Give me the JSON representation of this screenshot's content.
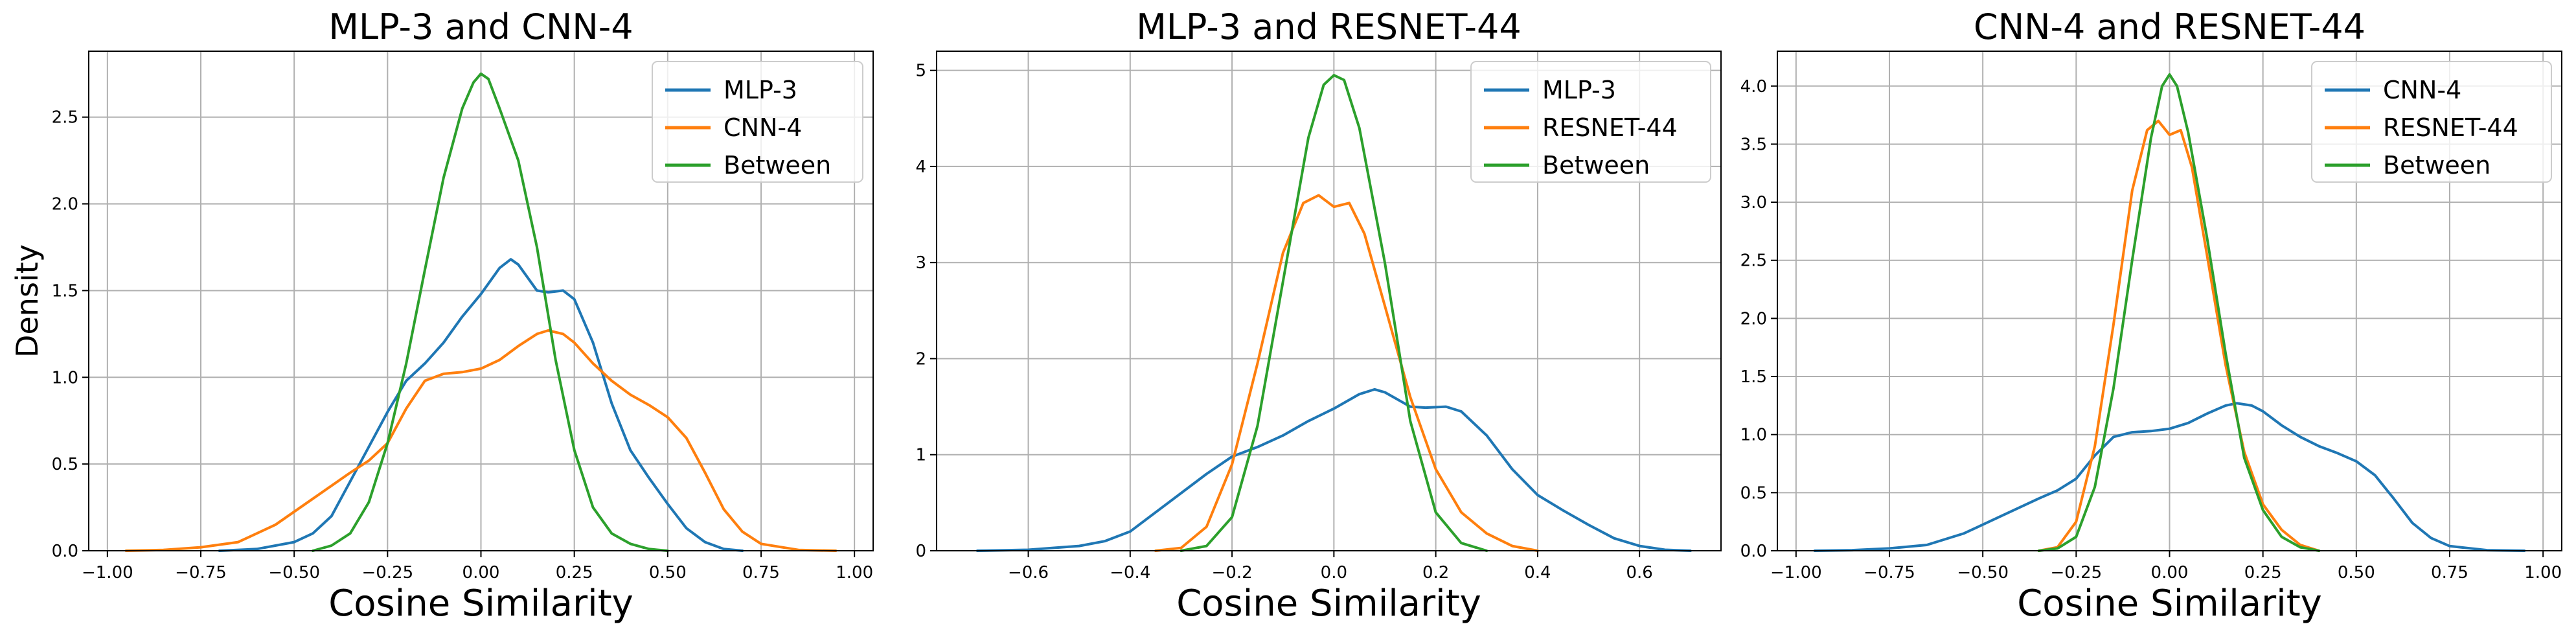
{
  "chart_data": [
    {
      "type": "line",
      "title": "MLP-3 and CNN-4",
      "xlabel": "Cosine Similarity",
      "ylabel": "Density",
      "xlim": [
        -1.05,
        1.05
      ],
      "ylim": [
        0,
        2.88
      ],
      "xticks": [
        -1.0,
        -0.75,
        -0.5,
        -0.25,
        0.0,
        0.25,
        0.5,
        0.75,
        1.0
      ],
      "xtick_labels": [
        "−1.00",
        "−0.75",
        "−0.50",
        "−0.25",
        "0.00",
        "0.25",
        "0.50",
        "0.75",
        "1.00"
      ],
      "yticks": [
        0,
        0.5,
        1.0,
        1.5,
        2.0,
        2.5
      ],
      "ytick_labels": [
        "0.0",
        "0.5",
        "1.0",
        "1.5",
        "2.0",
        "2.5"
      ],
      "grid": true,
      "legend_position": "upper right",
      "series": [
        {
          "name": "MLP-3",
          "color": "#1f77b4",
          "x": [
            -0.7,
            -0.6,
            -0.5,
            -0.45,
            -0.4,
            -0.35,
            -0.3,
            -0.25,
            -0.2,
            -0.15,
            -0.1,
            -0.05,
            0.0,
            0.05,
            0.08,
            0.1,
            0.15,
            0.18,
            0.22,
            0.25,
            0.3,
            0.35,
            0.4,
            0.45,
            0.5,
            0.55,
            0.6,
            0.65,
            0.7
          ],
          "y": [
            0.0,
            0.01,
            0.05,
            0.1,
            0.2,
            0.4,
            0.6,
            0.8,
            0.98,
            1.08,
            1.2,
            1.35,
            1.48,
            1.63,
            1.68,
            1.65,
            1.5,
            1.49,
            1.5,
            1.45,
            1.2,
            0.85,
            0.58,
            0.42,
            0.27,
            0.13,
            0.05,
            0.01,
            0.0
          ]
        },
        {
          "name": "CNN-4",
          "color": "#ff7f0e",
          "x": [
            -0.95,
            -0.85,
            -0.75,
            -0.65,
            -0.55,
            -0.45,
            -0.35,
            -0.3,
            -0.25,
            -0.2,
            -0.15,
            -0.1,
            -0.05,
            0.0,
            0.05,
            0.1,
            0.15,
            0.18,
            0.22,
            0.25,
            0.3,
            0.35,
            0.4,
            0.45,
            0.5,
            0.55,
            0.6,
            0.65,
            0.7,
            0.75,
            0.85,
            0.95
          ],
          "y": [
            0.0,
            0.005,
            0.02,
            0.05,
            0.15,
            0.3,
            0.45,
            0.52,
            0.62,
            0.82,
            0.98,
            1.02,
            1.03,
            1.05,
            1.1,
            1.18,
            1.25,
            1.27,
            1.25,
            1.2,
            1.08,
            0.98,
            0.9,
            0.84,
            0.77,
            0.65,
            0.45,
            0.24,
            0.11,
            0.04,
            0.005,
            0.0
          ]
        },
        {
          "name": "Between",
          "color": "#2ca02c",
          "x": [
            -0.45,
            -0.4,
            -0.35,
            -0.3,
            -0.25,
            -0.2,
            -0.15,
            -0.1,
            -0.05,
            -0.02,
            0.0,
            0.02,
            0.05,
            0.1,
            0.15,
            0.2,
            0.25,
            0.3,
            0.35,
            0.4,
            0.45,
            0.5
          ],
          "y": [
            0.0,
            0.03,
            0.1,
            0.28,
            0.62,
            1.08,
            1.62,
            2.15,
            2.55,
            2.7,
            2.75,
            2.72,
            2.55,
            2.25,
            1.75,
            1.1,
            0.58,
            0.25,
            0.1,
            0.04,
            0.01,
            0.0
          ]
        }
      ]
    },
    {
      "type": "line",
      "title": "MLP-3 and RESNET-44",
      "xlabel": "Cosine Similarity",
      "ylabel": "",
      "xlim": [
        -0.78,
        0.76
      ],
      "ylim": [
        0,
        5.2
      ],
      "xticks": [
        -0.6,
        -0.4,
        -0.2,
        0.0,
        0.2,
        0.4,
        0.6
      ],
      "xtick_labels": [
        "−0.6",
        "−0.4",
        "−0.2",
        "0.0",
        "0.2",
        "0.4",
        "0.6"
      ],
      "yticks": [
        0,
        1,
        2,
        3,
        4,
        5
      ],
      "ytick_labels": [
        "0",
        "1",
        "2",
        "3",
        "4",
        "5"
      ],
      "grid": true,
      "legend_position": "upper right",
      "series": [
        {
          "name": "MLP-3",
          "color": "#1f77b4",
          "x": [
            -0.7,
            -0.6,
            -0.5,
            -0.45,
            -0.4,
            -0.35,
            -0.3,
            -0.25,
            -0.2,
            -0.15,
            -0.1,
            -0.05,
            0.0,
            0.05,
            0.08,
            0.1,
            0.15,
            0.18,
            0.22,
            0.25,
            0.3,
            0.35,
            0.4,
            0.45,
            0.5,
            0.55,
            0.6,
            0.65,
            0.7
          ],
          "y": [
            0.0,
            0.01,
            0.05,
            0.1,
            0.2,
            0.4,
            0.6,
            0.8,
            0.98,
            1.08,
            1.2,
            1.35,
            1.48,
            1.63,
            1.68,
            1.65,
            1.5,
            1.49,
            1.5,
            1.45,
            1.2,
            0.85,
            0.58,
            0.42,
            0.27,
            0.13,
            0.05,
            0.01,
            0.0
          ]
        },
        {
          "name": "RESNET-44",
          "color": "#ff7f0e",
          "x": [
            -0.35,
            -0.3,
            -0.25,
            -0.2,
            -0.15,
            -0.1,
            -0.06,
            -0.03,
            0.0,
            0.03,
            0.06,
            0.1,
            0.15,
            0.2,
            0.25,
            0.3,
            0.35,
            0.4
          ],
          "y": [
            0.0,
            0.03,
            0.25,
            0.9,
            1.95,
            3.1,
            3.62,
            3.7,
            3.58,
            3.62,
            3.3,
            2.55,
            1.6,
            0.85,
            0.4,
            0.18,
            0.05,
            0.0
          ]
        },
        {
          "name": "Between",
          "color": "#2ca02c",
          "x": [
            -0.3,
            -0.25,
            -0.2,
            -0.15,
            -0.1,
            -0.05,
            -0.02,
            0.0,
            0.02,
            0.05,
            0.1,
            0.15,
            0.2,
            0.25,
            0.3
          ],
          "y": [
            0.0,
            0.05,
            0.35,
            1.3,
            2.8,
            4.3,
            4.85,
            4.95,
            4.9,
            4.4,
            3.0,
            1.35,
            0.4,
            0.08,
            0.0
          ]
        }
      ]
    },
    {
      "type": "line",
      "title": "CNN-4 and RESNET-44",
      "xlabel": "Cosine Similarity",
      "ylabel": "",
      "xlim": [
        -1.05,
        1.05
      ],
      "ylim": [
        0,
        4.3
      ],
      "xticks": [
        -1.0,
        -0.75,
        -0.5,
        -0.25,
        0.0,
        0.25,
        0.5,
        0.75,
        1.0
      ],
      "xtick_labels": [
        "−1.00",
        "−0.75",
        "−0.50",
        "−0.25",
        "0.00",
        "0.25",
        "0.50",
        "0.75",
        "1.00"
      ],
      "yticks": [
        0,
        0.5,
        1.0,
        1.5,
        2.0,
        2.5,
        3.0,
        3.5,
        4.0
      ],
      "ytick_labels": [
        "0.0",
        "0.5",
        "1.0",
        "1.5",
        "2.0",
        "2.5",
        "3.0",
        "3.5",
        "4.0"
      ],
      "grid": true,
      "legend_position": "upper right",
      "series": [
        {
          "name": "CNN-4",
          "color": "#1f77b4",
          "x": [
            -0.95,
            -0.85,
            -0.75,
            -0.65,
            -0.55,
            -0.45,
            -0.35,
            -0.3,
            -0.25,
            -0.2,
            -0.15,
            -0.1,
            -0.05,
            0.0,
            0.05,
            0.1,
            0.15,
            0.18,
            0.22,
            0.25,
            0.3,
            0.35,
            0.4,
            0.45,
            0.5,
            0.55,
            0.6,
            0.65,
            0.7,
            0.75,
            0.85,
            0.95
          ],
          "y": [
            0.0,
            0.005,
            0.02,
            0.05,
            0.15,
            0.3,
            0.45,
            0.52,
            0.62,
            0.82,
            0.98,
            1.02,
            1.03,
            1.05,
            1.1,
            1.18,
            1.25,
            1.27,
            1.25,
            1.2,
            1.08,
            0.98,
            0.9,
            0.84,
            0.77,
            0.65,
            0.45,
            0.24,
            0.11,
            0.04,
            0.005,
            0.0
          ]
        },
        {
          "name": "RESNET-44",
          "color": "#ff7f0e",
          "x": [
            -0.35,
            -0.3,
            -0.25,
            -0.2,
            -0.15,
            -0.1,
            -0.06,
            -0.03,
            0.0,
            0.03,
            0.06,
            0.1,
            0.15,
            0.2,
            0.25,
            0.3,
            0.35,
            0.4
          ],
          "y": [
            0.0,
            0.03,
            0.25,
            0.9,
            1.95,
            3.1,
            3.62,
            3.7,
            3.58,
            3.62,
            3.3,
            2.55,
            1.6,
            0.85,
            0.4,
            0.18,
            0.05,
            0.0
          ]
        },
        {
          "name": "Between",
          "color": "#2ca02c",
          "x": [
            -0.35,
            -0.3,
            -0.25,
            -0.2,
            -0.15,
            -0.1,
            -0.05,
            -0.02,
            0.0,
            0.02,
            0.05,
            0.1,
            0.15,
            0.2,
            0.25,
            0.3,
            0.35,
            0.4
          ],
          "y": [
            0.0,
            0.02,
            0.12,
            0.55,
            1.4,
            2.5,
            3.55,
            4.0,
            4.1,
            4.0,
            3.6,
            2.7,
            1.7,
            0.8,
            0.35,
            0.12,
            0.03,
            0.0
          ]
        }
      ]
    }
  ]
}
